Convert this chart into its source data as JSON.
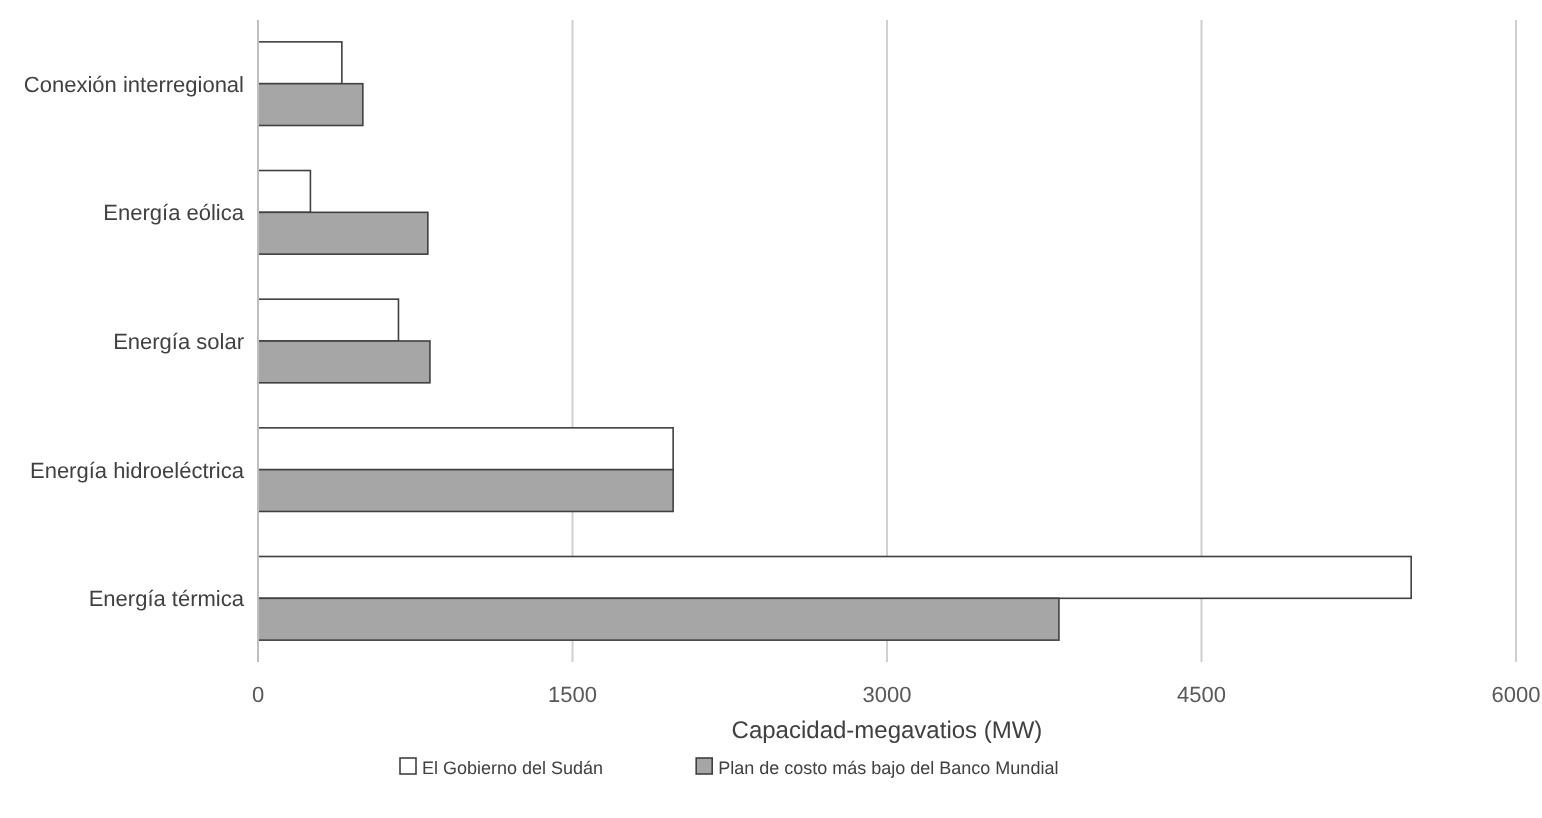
{
  "chart_data": {
    "type": "bar",
    "orientation": "horizontal",
    "xlabel": "Capacidad-megavatios (MW)",
    "categories": [
      "Conexión interregional",
      "Energía eólica",
      "Energía solar",
      "Energía hidroeléctrica",
      "Energía térmica"
    ],
    "series": [
      {
        "name": "El Gobierno del Sudán",
        "color": "#ffffff",
        "values": [
          400,
          250,
          670,
          1980,
          5500
        ]
      },
      {
        "name": "Plan de costo más bajo del Banco Mundial",
        "color": "#a6a6a6",
        "values": [
          500,
          810,
          820,
          1980,
          3820
        ]
      }
    ],
    "xlim": [
      0,
      6000
    ],
    "xticks": [
      0,
      1500,
      3000,
      4500,
      6000
    ],
    "grid": "x",
    "legend": "bottom"
  }
}
